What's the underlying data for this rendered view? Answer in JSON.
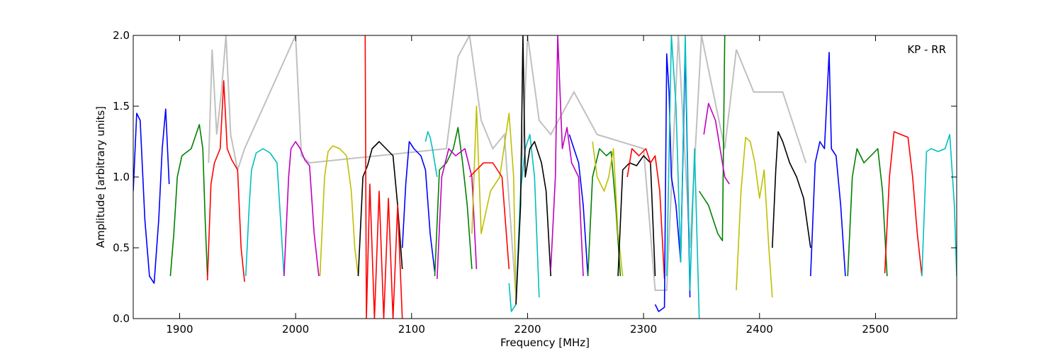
{
  "chart_data": {
    "type": "line",
    "xlabel": "Frequency [MHz]",
    "ylabel": "Amplitude [arbitrary units]",
    "annotation": "KP - RR",
    "xlim": [
      1860,
      2570
    ],
    "ylim": [
      0.0,
      2.0
    ],
    "xticks": [
      1900,
      2000,
      2100,
      2200,
      2300,
      2400,
      2500
    ],
    "yticks": [
      0.0,
      0.5,
      1.0,
      1.5,
      2.0
    ],
    "xtick_labels": [
      "1900",
      "2000",
      "2100",
      "2200",
      "2300",
      "2400",
      "2500"
    ],
    "ytick_labels": [
      "0.0",
      "0.5",
      "1.0",
      "1.5",
      "2.0"
    ],
    "grid": false,
    "background_series": {
      "color": "#c0c0c0",
      "x": [
        1925,
        1928,
        1932,
        1936,
        1940,
        1944,
        1950,
        1956,
        2000,
        2005,
        2012,
        2130,
        2140,
        2150,
        2160,
        2170,
        2180,
        2190,
        2200,
        2210,
        2220,
        2240,
        2260,
        2300,
        2310,
        2320,
        2330,
        2340,
        2350,
        2360,
        2370,
        2380,
        2395,
        2405,
        2420,
        2440
      ],
      "y": [
        1.1,
        1.9,
        1.3,
        1.6,
        2.0,
        1.3,
        1.05,
        1.2,
        2.0,
        1.15,
        1.1,
        1.2,
        1.85,
        2.0,
        1.4,
        1.2,
        1.3,
        0.15,
        2.0,
        1.4,
        1.3,
        1.6,
        1.3,
        1.2,
        0.2,
        0.2,
        2.0,
        0.5,
        2.0,
        1.6,
        1.2,
        1.9,
        1.6,
        1.6,
        1.6,
        1.1
      ]
    },
    "series": [
      {
        "color": "#0000ff",
        "x": [
          1860,
          1863,
          1866,
          1870,
          1874,
          1878,
          1882,
          1885,
          1888,
          1891
        ],
        "y": [
          0.9,
          1.45,
          1.4,
          0.7,
          0.3,
          0.25,
          0.7,
          1.2,
          1.48,
          0.95
        ]
      },
      {
        "color": "#008000",
        "x": [
          1892,
          1895,
          1898,
          1902,
          1910,
          1917,
          1920,
          1922,
          1924
        ],
        "y": [
          0.3,
          0.6,
          1.0,
          1.15,
          1.2,
          1.37,
          1.2,
          0.7,
          0.3
        ]
      },
      {
        "color": "#ff0000",
        "x": [
          1924,
          1927,
          1930,
          1935,
          1938,
          1941,
          1945,
          1950,
          1953,
          1956
        ],
        "y": [
          0.27,
          0.95,
          1.1,
          1.2,
          1.68,
          1.2,
          1.12,
          1.05,
          0.5,
          0.26
        ]
      },
      {
        "color": "#00bfbf",
        "x": [
          1957,
          1960,
          1962,
          1966,
          1972,
          1978,
          1984,
          1987,
          1990
        ],
        "y": [
          0.3,
          0.8,
          1.05,
          1.17,
          1.2,
          1.17,
          1.1,
          0.7,
          0.3
        ]
      },
      {
        "color": "#bf00bf",
        "x": [
          1990,
          1994,
          1996,
          2000,
          2004,
          2008,
          2012,
          2016,
          2020
        ],
        "y": [
          0.3,
          1.0,
          1.2,
          1.25,
          1.2,
          1.12,
          1.08,
          0.6,
          0.3
        ]
      },
      {
        "color": "#bfbf00",
        "x": [
          2021,
          2025,
          2028,
          2032,
          2038,
          2044,
          2048,
          2051,
          2054
        ],
        "y": [
          0.3,
          1.0,
          1.18,
          1.22,
          1.2,
          1.15,
          0.9,
          0.5,
          0.3
        ]
      },
      {
        "color": "#000000",
        "x": [
          2054,
          2058,
          2062,
          2066,
          2072,
          2078,
          2084,
          2088,
          2092
        ],
        "y": [
          0.3,
          1.0,
          1.08,
          1.2,
          1.25,
          1.2,
          1.15,
          0.8,
          0.35
        ]
      },
      {
        "color": "#ff0000",
        "x": [
          2060,
          2061,
          2064,
          2068,
          2072,
          2076,
          2080,
          2084,
          2088,
          2092
        ],
        "y": [
          2.0,
          0.0,
          0.95,
          0.0,
          0.9,
          0.0,
          0.85,
          0.0,
          0.8,
          0.0
        ]
      },
      {
        "color": "#0000ff",
        "x": [
          2092,
          2095,
          2098,
          2102,
          2108,
          2112,
          2116,
          2120
        ],
        "y": [
          0.5,
          0.95,
          1.25,
          1.2,
          1.15,
          1.05,
          0.6,
          0.33
        ]
      },
      {
        "color": "#00bfbf",
        "x": [
          2112,
          2114,
          2116,
          2118,
          2120,
          2122
        ],
        "y": [
          1.25,
          1.32,
          1.28,
          1.2,
          1.1,
          1.0
        ]
      },
      {
        "color": "#008000",
        "x": [
          2120,
          2124,
          2130,
          2136,
          2140,
          2144,
          2148,
          2152
        ],
        "y": [
          0.3,
          1.05,
          1.1,
          1.2,
          1.35,
          1.1,
          0.8,
          0.35
        ]
      },
      {
        "color": "#bf00bf",
        "x": [
          2122,
          2126,
          2132,
          2138,
          2146,
          2152,
          2156
        ],
        "y": [
          0.28,
          1.0,
          1.2,
          1.15,
          1.2,
          1.0,
          0.35
        ]
      },
      {
        "color": "#bfbf00",
        "x": [
          2152,
          2156,
          2160,
          2168,
          2176,
          2184,
          2188,
          2190
        ],
        "y": [
          0.6,
          1.5,
          0.6,
          0.9,
          1.0,
          1.45,
          1.0,
          0.1
        ]
      },
      {
        "color": "#ff0000",
        "x": [
          2150,
          2156,
          2162,
          2170,
          2178,
          2184
        ],
        "y": [
          1.0,
          1.05,
          1.1,
          1.1,
          1.0,
          0.35
        ]
      },
      {
        "color": "#00bfbf",
        "x": [
          2184,
          2186,
          2190,
          2194,
          2198,
          2202,
          2206,
          2210
        ],
        "y": [
          0.25,
          0.05,
          0.1,
          0.9,
          1.2,
          1.3,
          1.0,
          0.15
        ]
      },
      {
        "color": "#000000",
        "x": [
          2190,
          2194,
          2196,
          2198,
          2202,
          2206,
          2212,
          2216,
          2220
        ],
        "y": [
          0.1,
          0.8,
          2.0,
          1.0,
          1.2,
          1.25,
          1.1,
          0.9,
          0.3
        ]
      },
      {
        "color": "#bf00bf",
        "x": [
          2220,
          2224,
          2226,
          2230,
          2234,
          2238,
          2244,
          2248
        ],
        "y": [
          0.35,
          1.0,
          2.0,
          1.2,
          1.35,
          1.1,
          1.0,
          0.3
        ]
      },
      {
        "color": "#0000ff",
        "x": [
          2236,
          2240,
          2244,
          2248,
          2252
        ],
        "y": [
          1.3,
          1.2,
          1.1,
          0.8,
          0.3
        ]
      },
      {
        "color": "#008000",
        "x": [
          2252,
          2256,
          2262,
          2268,
          2272,
          2276,
          2280
        ],
        "y": [
          0.3,
          1.0,
          1.2,
          1.15,
          1.18,
          0.8,
          0.3
        ]
      },
      {
        "color": "#bfbf00",
        "x": [
          2256,
          2260,
          2266,
          2270,
          2274,
          2278,
          2282
        ],
        "y": [
          1.25,
          1.0,
          0.9,
          1.0,
          1.2,
          0.6,
          0.3
        ]
      },
      {
        "color": "#000000",
        "x": [
          2278,
          2282,
          2288,
          2294,
          2300,
          2306,
          2310
        ],
        "y": [
          0.3,
          1.05,
          1.1,
          1.08,
          1.15,
          1.1,
          0.3
        ]
      },
      {
        "color": "#ff0000",
        "x": [
          2286,
          2290,
          2296,
          2302,
          2306,
          2310,
          2314,
          2318
        ],
        "y": [
          1.0,
          1.2,
          1.15,
          1.2,
          1.1,
          1.15,
          0.9,
          0.28
        ]
      },
      {
        "color": "#0000ff",
        "x": [
          2310,
          2313,
          2318,
          2320,
          2322,
          2324,
          2328,
          2332,
          2336,
          2340
        ],
        "y": [
          0.1,
          0.05,
          0.08,
          1.87,
          1.6,
          1.0,
          0.8,
          0.4,
          1.9,
          0.15
        ]
      },
      {
        "color": "#00bfbf",
        "x": [
          2320,
          2324,
          2328,
          2332,
          2336,
          2340,
          2344,
          2348
        ],
        "y": [
          0.3,
          2.0,
          1.5,
          0.4,
          2.0,
          0.2,
          1.2,
          0.0
        ]
      },
      {
        "color": "#008000",
        "x": [
          2348,
          2352,
          2356,
          2360,
          2364,
          2368,
          2370
        ],
        "y": [
          0.9,
          0.85,
          0.8,
          0.7,
          0.6,
          0.55,
          2.0
        ]
      },
      {
        "color": "#bf00bf",
        "x": [
          2352,
          2356,
          2362,
          2366,
          2370,
          2374
        ],
        "y": [
          1.3,
          1.52,
          1.4,
          1.2,
          1.0,
          0.95
        ]
      },
      {
        "color": "#bfbf00",
        "x": [
          2380,
          2384,
          2388,
          2392,
          2396,
          2400,
          2404,
          2408,
          2411
        ],
        "y": [
          0.2,
          0.9,
          1.28,
          1.25,
          1.1,
          0.85,
          1.05,
          0.5,
          0.15
        ]
      },
      {
        "color": "#000000",
        "x": [
          2411,
          2414,
          2416,
          2420,
          2426,
          2432,
          2438,
          2444
        ],
        "y": [
          0.5,
          1.05,
          1.32,
          1.25,
          1.1,
          1.0,
          0.85,
          0.5
        ]
      },
      {
        "color": "#0000ff",
        "x": [
          2444,
          2448,
          2452,
          2456,
          2460,
          2462,
          2466,
          2470,
          2474
        ],
        "y": [
          0.3,
          1.1,
          1.25,
          1.2,
          1.88,
          1.2,
          1.15,
          0.8,
          0.3
        ]
      },
      {
        "color": "#008000",
        "x": [
          2476,
          2480,
          2484,
          2490,
          2496,
          2502,
          2506,
          2510
        ],
        "y": [
          0.3,
          1.0,
          1.2,
          1.1,
          1.15,
          1.2,
          0.9,
          0.3
        ]
      },
      {
        "color": "#ff0000",
        "x": [
          2508,
          2512,
          2516,
          2522,
          2528,
          2532,
          2536,
          2540
        ],
        "y": [
          0.32,
          1.0,
          1.32,
          1.3,
          1.28,
          1.0,
          0.6,
          0.3
        ]
      },
      {
        "color": "#00bfbf",
        "x": [
          2540,
          2544,
          2548,
          2554,
          2560,
          2564,
          2568,
          2570
        ],
        "y": [
          0.3,
          1.18,
          1.2,
          1.18,
          1.2,
          1.3,
          0.8,
          0.3
        ]
      }
    ]
  }
}
